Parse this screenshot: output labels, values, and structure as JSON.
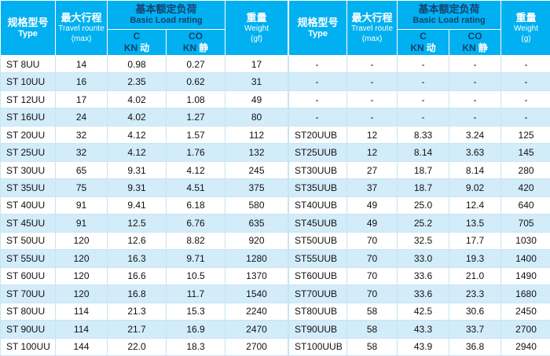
{
  "colors": {
    "header_bg": "#00b0f0",
    "header_text_light": "#ffffff",
    "header_text_dark": "#17406d",
    "row_bg": "#ffffff",
    "row_alt_bg": "#d3ecfa"
  },
  "table_left": {
    "headers": {
      "type_zh": "规格型号",
      "type_en": "Type",
      "travel_zh": "最大行程",
      "travel_en": "Travel rounte",
      "travel_max": "(max)",
      "load_zh": "基本额定负荷",
      "load_en": "Basic Load rating",
      "c_top": "C",
      "c_unit": "KN",
      "c_cn": "动",
      "co_top": "CO",
      "co_unit": "KN",
      "co_cn": "静",
      "weight_zh": "重量",
      "weight_en": "Weight",
      "weight_unit": "(gf)"
    },
    "rows": [
      [
        "ST 8UU",
        "14",
        "0.98",
        "0.27",
        "17"
      ],
      [
        "ST 10UU",
        "16",
        "2.35",
        "0.62",
        "31"
      ],
      [
        "ST 12UU",
        "17",
        "4.02",
        "1.08",
        "49"
      ],
      [
        "ST 16UU",
        "24",
        "4.02",
        "1.27",
        "80"
      ],
      [
        "ST 20UU",
        "32",
        "4.12",
        "1.57",
        "112"
      ],
      [
        "ST 25UU",
        "32",
        "4.12",
        "1.76",
        "132"
      ],
      [
        "ST 30UU",
        "65",
        "9.31",
        "4.12",
        "245"
      ],
      [
        "ST 35UU",
        "75",
        "9.31",
        "4.51",
        "375"
      ],
      [
        "ST 40UU",
        "91",
        "9.41",
        "6.18",
        "580"
      ],
      [
        "ST 45UU",
        "91",
        "12.5",
        "6.76",
        "635"
      ],
      [
        "ST 50UU",
        "120",
        "12.6",
        "8.82",
        "920"
      ],
      [
        "ST 55UU",
        "120",
        "16.3",
        "9.71",
        "1280"
      ],
      [
        "ST 60UU",
        "120",
        "16.6",
        "10.5",
        "1370"
      ],
      [
        "ST 70UU",
        "120",
        "16.8",
        "11.7",
        "1540"
      ],
      [
        "ST 80UU",
        "114",
        "21.3",
        "15.3",
        "2240"
      ],
      [
        "ST 90UU",
        "114",
        "21.7",
        "16.9",
        "2470"
      ],
      [
        "ST 100UU",
        "144",
        "22.0",
        "18.3",
        "2700"
      ]
    ]
  },
  "table_right": {
    "headers": {
      "type_zh": "规格型号",
      "type_en": "Type",
      "travel_zh": "最大行程",
      "travel_en": "Travel route",
      "travel_max": "(max)",
      "load_zh": "基本额定负荷",
      "load_en": "Basic Load rating",
      "c_top": "C",
      "c_unit": "KN",
      "c_cn": "动",
      "co_top": "CO",
      "co_unit": "KN",
      "co_cn": "静",
      "weight_zh": "重量",
      "weight_en": "Weight",
      "weight_unit": "(g)"
    },
    "rows": [
      [
        "-",
        "-",
        "-",
        "-",
        "-"
      ],
      [
        "-",
        "-",
        "-",
        "-",
        "-"
      ],
      [
        "-",
        "-",
        "-",
        "-",
        "-"
      ],
      [
        "-",
        "-",
        "-",
        "-",
        "-"
      ],
      [
        "ST20UUB",
        "12",
        "8.33",
        "3.24",
        "125"
      ],
      [
        "ST25UUB",
        "12",
        "8.14",
        "3.63",
        "145"
      ],
      [
        "ST30UUB",
        "27",
        "18.7",
        "8.14",
        "280"
      ],
      [
        "ST35UUB",
        "37",
        "18.7",
        "9.02",
        "420"
      ],
      [
        "ST40UUB",
        "49",
        "25.0",
        "12.4",
        "640"
      ],
      [
        "ST45UUB",
        "49",
        "25.2",
        "13.5",
        "705"
      ],
      [
        "ST50UUB",
        "70",
        "32.5",
        "17.7",
        "1030"
      ],
      [
        "ST55UUB",
        "70",
        "33.0",
        "19.3",
        "1400"
      ],
      [
        "ST60UUB",
        "70",
        "33.6",
        "21.0",
        "1490"
      ],
      [
        "ST70UUB",
        "70",
        "33.6",
        "23.3",
        "1680"
      ],
      [
        "ST80UUB",
        "58",
        "42.5",
        "30.6",
        "2450"
      ],
      [
        "ST90UUB",
        "58",
        "43.3",
        "33.7",
        "2700"
      ],
      [
        "ST100UUB",
        "58",
        "43.9",
        "36.8",
        "2940"
      ]
    ]
  }
}
